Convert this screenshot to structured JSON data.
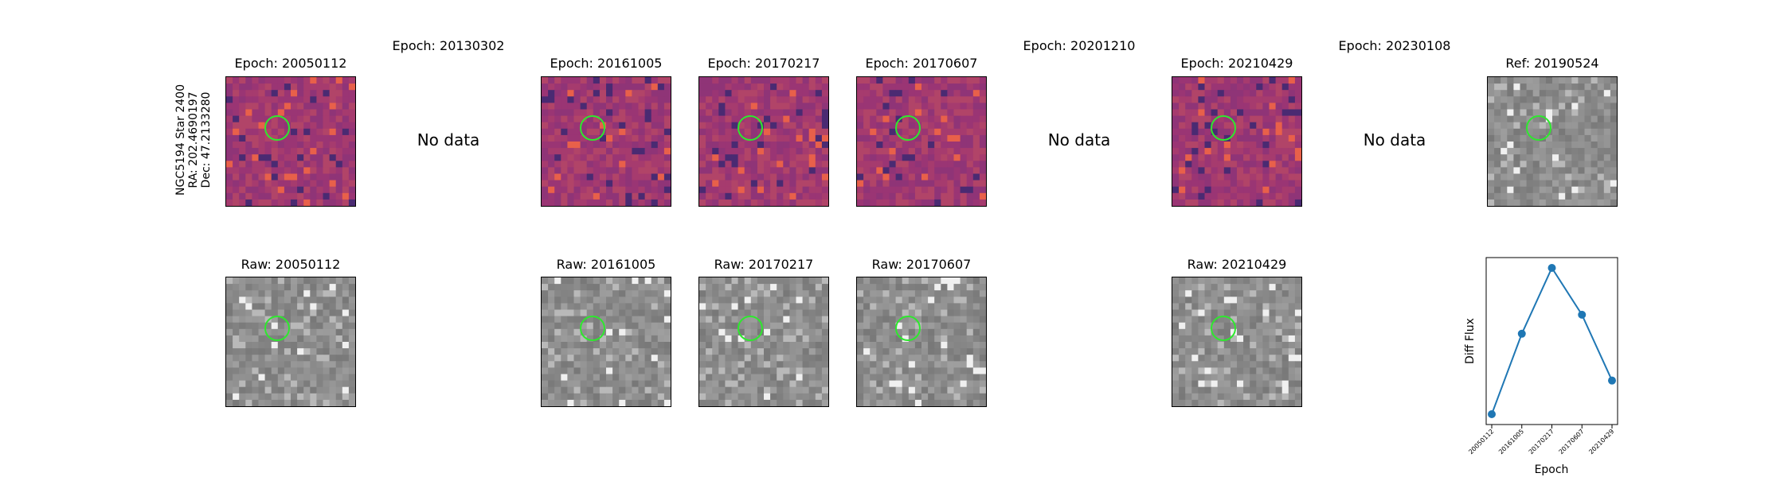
{
  "star_label": {
    "line1": "NGC5194 Star 2400",
    "line2": "RA: 202.4690197",
    "line3": "Dec: 47.2133280"
  },
  "diff_panels": [
    {
      "title": "Epoch: 20050112",
      "status": "image"
    },
    {
      "title": "Epoch: 20130302",
      "status": "No data"
    },
    {
      "title": "Epoch: 20161005",
      "status": "image"
    },
    {
      "title": "Epoch: 20170217",
      "status": "image"
    },
    {
      "title": "Epoch: 20170607",
      "status": "image"
    },
    {
      "title": "Epoch: 20201210",
      "status": "No data"
    },
    {
      "title": "Epoch: 20210429",
      "status": "image"
    },
    {
      "title": "Epoch: 20230108",
      "status": "No data"
    }
  ],
  "ref_panel": {
    "title": "Ref: 20190524"
  },
  "raw_panels": [
    {
      "title": "Raw: 20050112"
    },
    {
      "title": "Raw: 20161005"
    },
    {
      "title": "Raw: 20170217"
    },
    {
      "title": "Raw: 20170607"
    },
    {
      "title": "Raw: 20210429"
    }
  ],
  "colors": {
    "diff_cmap_base": "#a13a72",
    "circle": "#2ee82e",
    "line": "#1f77b4"
  },
  "chart_data": {
    "type": "line",
    "categories": [
      "20050112",
      "20161005",
      "20170217",
      "20170607",
      "20210429"
    ],
    "values": [
      0.0,
      0.55,
      1.0,
      0.68,
      0.23
    ],
    "xlabel": "Epoch",
    "ylabel": "Diff Flux",
    "grid": false
  }
}
